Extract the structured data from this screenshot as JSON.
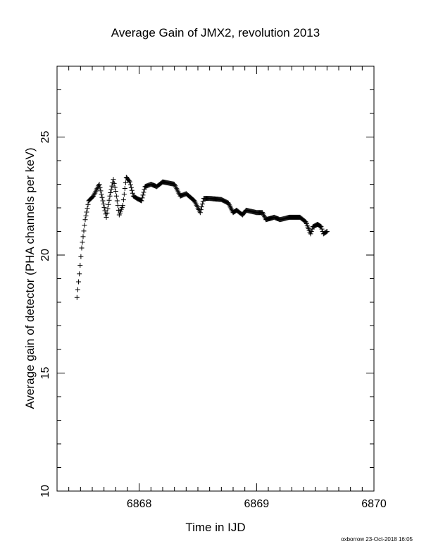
{
  "chart_data": {
    "type": "scatter",
    "title": "Average Gain of JMX2, revolution 2013",
    "xlabel": "Time in IJD",
    "ylabel": "Average gain of detector (PHA channels per keV)",
    "xlim": [
      6867.3,
      6870
    ],
    "ylim": [
      10,
      28
    ],
    "xticks": [
      6868,
      6869,
      6870
    ],
    "xtick_labels": [
      "6868",
      "6869",
      "6870"
    ],
    "yticks": [
      10,
      15,
      20,
      25
    ],
    "ytick_labels": [
      "10",
      "15",
      "20",
      "25"
    ],
    "marker": "plus",
    "grid": false,
    "keypoints": [
      [
        6867.47,
        18.2
      ],
      [
        6867.49,
        19.2
      ],
      [
        6867.51,
        20.3
      ],
      [
        6867.54,
        21.5
      ],
      [
        6867.57,
        22.3
      ],
      [
        6867.61,
        22.5
      ],
      [
        6867.66,
        23.0
      ],
      [
        6867.69,
        22.3
      ],
      [
        6867.72,
        21.6
      ],
      [
        6867.75,
        22.5
      ],
      [
        6867.78,
        23.2
      ],
      [
        6867.8,
        22.7
      ],
      [
        6867.83,
        21.7
      ],
      [
        6867.86,
        22.1
      ],
      [
        6867.89,
        23.3
      ],
      [
        6867.92,
        23.1
      ],
      [
        6867.95,
        22.5
      ],
      [
        6867.98,
        22.4
      ],
      [
        6868.02,
        22.3
      ],
      [
        6868.05,
        22.9
      ],
      [
        6868.1,
        23.0
      ],
      [
        6868.15,
        22.9
      ],
      [
        6868.2,
        23.1
      ],
      [
        6868.3,
        23.0
      ],
      [
        6868.35,
        22.5
      ],
      [
        6868.4,
        22.6
      ],
      [
        6868.47,
        22.3
      ],
      [
        6868.52,
        21.8
      ],
      [
        6868.55,
        22.4
      ],
      [
        6868.6,
        22.4
      ],
      [
        6868.7,
        22.35
      ],
      [
        6868.76,
        22.2
      ],
      [
        6868.8,
        21.8
      ],
      [
        6868.83,
        21.9
      ],
      [
        6868.88,
        21.7
      ],
      [
        6868.91,
        21.9
      ],
      [
        6869.0,
        21.8
      ],
      [
        6869.05,
        21.8
      ],
      [
        6869.08,
        21.5
      ],
      [
        6869.15,
        21.6
      ],
      [
        6869.2,
        21.5
      ],
      [
        6869.28,
        21.6
      ],
      [
        6869.37,
        21.6
      ],
      [
        6869.42,
        21.4
      ],
      [
        6869.46,
        20.9
      ],
      [
        6869.48,
        21.2
      ],
      [
        6869.52,
        21.3
      ],
      [
        6869.55,
        21.2
      ],
      [
        6869.57,
        20.9
      ],
      [
        6869.6,
        21.0
      ]
    ]
  },
  "footer": {
    "credit": "oxborrow 23-Oct-2018 16:05"
  }
}
